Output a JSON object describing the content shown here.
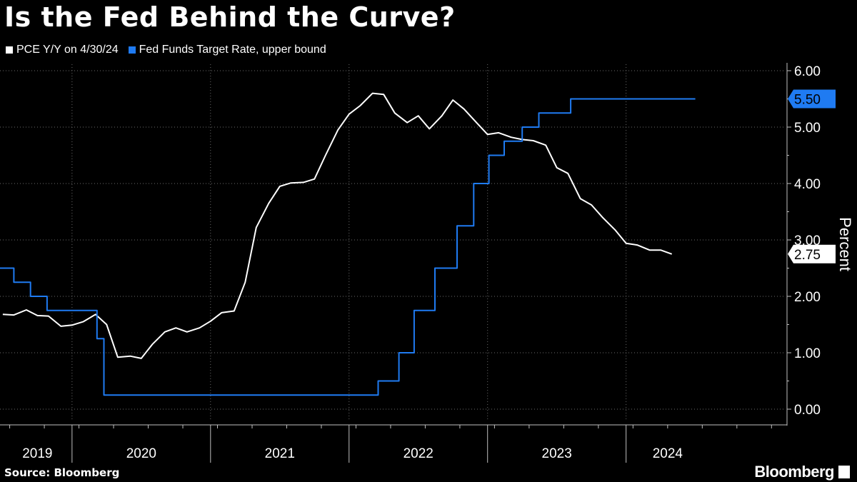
{
  "header": {
    "title": "Is the Fed Behind the Curve?"
  },
  "legend": {
    "series_a": "PCE Y/Y on 4/30/24",
    "series_b": "Fed Funds Target Rate, upper bound"
  },
  "colors": {
    "background": "#000000",
    "pce": "#ffffff",
    "fed": "#1f7bf2",
    "grid": "#6b6b6b"
  },
  "footer": {
    "source": "Source: Bloomberg",
    "brand": "Bloomberg"
  },
  "chart_data": {
    "type": "line",
    "title": "Is the Fed Behind the Curve?",
    "ylabel": "Percent",
    "xlabel": "",
    "ylim": [
      0,
      6
    ],
    "xlim": [
      2018.93,
      2024.55
    ],
    "yticks": [
      0,
      1,
      2,
      3,
      4,
      5,
      6
    ],
    "ytick_labels": [
      "0.00",
      "1.00",
      "2.00",
      "3.00",
      "4.00",
      "5.00",
      "6.00"
    ],
    "year_labels": [
      {
        "label": "2019",
        "x": 2019.2
      },
      {
        "label": "2020",
        "x": 2019.95
      },
      {
        "label": "2021",
        "x": 2020.95
      },
      {
        "label": "2022",
        "x": 2021.95
      },
      {
        "label": "2023",
        "x": 2022.95
      },
      {
        "label": "2024",
        "x": 2023.75
      }
    ],
    "year_dividers": [
      2019.45,
      2020.45,
      2021.45,
      2022.45,
      2023.45
    ],
    "last_values": [
      {
        "series": "Fed Funds Target Rate, upper bound",
        "label": "5.50",
        "value": 5.5
      },
      {
        "series": "PCE Y/Y on 4/30/24",
        "label": "2.75",
        "value": 2.75
      }
    ],
    "series": [
      {
        "name": "PCE Y/Y on 4/30/24",
        "points": [
          [
            2018.95,
            1.68
          ],
          [
            2019.03,
            1.67
          ],
          [
            2019.12,
            1.76
          ],
          [
            2019.2,
            1.66
          ],
          [
            2019.28,
            1.65
          ],
          [
            2019.37,
            1.47
          ],
          [
            2019.45,
            1.49
          ],
          [
            2019.53,
            1.55
          ],
          [
            2019.62,
            1.68
          ],
          [
            2019.7,
            1.5
          ],
          [
            2019.78,
            0.92
          ],
          [
            2019.87,
            0.94
          ],
          [
            2019.95,
            0.9
          ],
          [
            2020.03,
            1.15
          ],
          [
            2020.12,
            1.37
          ],
          [
            2020.2,
            1.44
          ],
          [
            2020.28,
            1.37
          ],
          [
            2020.37,
            1.44
          ],
          [
            2020.45,
            1.56
          ],
          [
            2020.53,
            1.71
          ],
          [
            2020.62,
            1.74
          ],
          [
            2020.7,
            2.25
          ],
          [
            2020.78,
            3.22
          ],
          [
            2020.87,
            3.65
          ],
          [
            2020.95,
            3.95
          ],
          [
            2021.03,
            4.01
          ],
          [
            2021.12,
            4.02
          ],
          [
            2021.2,
            4.08
          ],
          [
            2021.28,
            4.5
          ],
          [
            2021.37,
            4.95
          ],
          [
            2021.45,
            5.23
          ],
          [
            2021.53,
            5.38
          ],
          [
            2021.62,
            5.6
          ],
          [
            2021.7,
            5.58
          ],
          [
            2021.78,
            5.25
          ],
          [
            2021.87,
            5.08
          ],
          [
            2021.95,
            5.2
          ],
          [
            2022.03,
            4.97
          ],
          [
            2022.12,
            5.2
          ],
          [
            2022.2,
            5.48
          ],
          [
            2022.28,
            5.32
          ],
          [
            2022.37,
            5.08
          ],
          [
            2022.45,
            4.87
          ],
          [
            2022.53,
            4.9
          ],
          [
            2022.62,
            4.82
          ],
          [
            2022.7,
            4.78
          ],
          [
            2022.78,
            4.76
          ],
          [
            2022.87,
            4.68
          ],
          [
            2022.95,
            4.28
          ],
          [
            2023.03,
            4.18
          ],
          [
            2023.12,
            3.73
          ],
          [
            2023.2,
            3.62
          ],
          [
            2023.28,
            3.4
          ],
          [
            2023.37,
            3.18
          ],
          [
            2023.45,
            2.94
          ],
          [
            2023.53,
            2.91
          ],
          [
            2023.62,
            2.82
          ],
          [
            2023.7,
            2.82
          ],
          [
            2023.78,
            2.75
          ]
        ]
      },
      {
        "name": "Fed Funds Target Rate, upper bound",
        "step": true,
        "points": [
          [
            2018.93,
            2.5
          ],
          [
            2019.03,
            2.5
          ],
          [
            2019.03,
            2.25
          ],
          [
            2019.15,
            2.25
          ],
          [
            2019.15,
            2.0
          ],
          [
            2019.27,
            2.0
          ],
          [
            2019.27,
            1.75
          ],
          [
            2019.63,
            1.75
          ],
          [
            2019.63,
            1.25
          ],
          [
            2019.68,
            1.25
          ],
          [
            2019.68,
            0.25
          ],
          [
            2021.66,
            0.25
          ],
          [
            2021.66,
            0.5
          ],
          [
            2021.81,
            0.5
          ],
          [
            2021.81,
            1.0
          ],
          [
            2021.92,
            1.0
          ],
          [
            2021.92,
            1.75
          ],
          [
            2022.07,
            1.75
          ],
          [
            2022.07,
            2.5
          ],
          [
            2022.23,
            2.5
          ],
          [
            2022.23,
            3.25
          ],
          [
            2022.35,
            3.25
          ],
          [
            2022.35,
            4.0
          ],
          [
            2022.46,
            4.0
          ],
          [
            2022.46,
            4.5
          ],
          [
            2022.57,
            4.5
          ],
          [
            2022.57,
            4.75
          ],
          [
            2022.7,
            4.75
          ],
          [
            2022.7,
            5.0
          ],
          [
            2022.82,
            5.0
          ],
          [
            2022.82,
            5.25
          ],
          [
            2023.05,
            5.25
          ],
          [
            2023.05,
            5.5
          ],
          [
            2023.95,
            5.5
          ]
        ]
      }
    ]
  }
}
